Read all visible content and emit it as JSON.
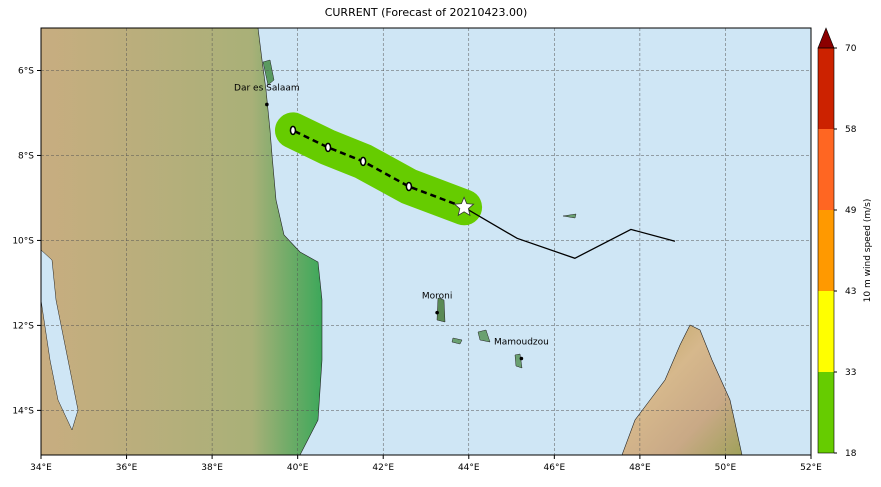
{
  "map": {
    "title": "CURRENT (Forecast of 20210423.00)",
    "xlim": [
      34,
      52
    ],
    "ylim": [
      -15.05,
      -5.0
    ],
    "xticks": [
      {
        "value": 34,
        "label": "34°E"
      },
      {
        "value": 36,
        "label": "36°E"
      },
      {
        "value": 38,
        "label": "38°E"
      },
      {
        "value": 40,
        "label": "40°E"
      },
      {
        "value": 42,
        "label": "42°E"
      },
      {
        "value": 44,
        "label": "44°E"
      },
      {
        "value": 46,
        "label": "46°E"
      },
      {
        "value": 48,
        "label": "48°E"
      },
      {
        "value": 50,
        "label": "50°E"
      },
      {
        "value": 52,
        "label": "52°E"
      }
    ],
    "yticks": [
      {
        "value": -6,
        "label": "6°S"
      },
      {
        "value": -8,
        "label": "8°S"
      },
      {
        "value": -10,
        "label": "10°S"
      },
      {
        "value": -12,
        "label": "12°S"
      },
      {
        "value": -14,
        "label": "14°S"
      }
    ],
    "grid": true,
    "cities": [
      {
        "name": "Dar es Salaam",
        "lon": 39.28,
        "lat": -6.8
      },
      {
        "name": "Moroni",
        "lon": 43.26,
        "lat": -11.7
      },
      {
        "name": "Mamoudzou",
        "lon": 45.23,
        "lat": -12.78
      }
    ],
    "forecast_track": {
      "lon": [
        43.89,
        42.6,
        41.53,
        40.71,
        39.89
      ],
      "lat": [
        -9.22,
        -8.73,
        -8.14,
        -7.81,
        -7.41
      ]
    },
    "past_track": {
      "lon": [
        48.82,
        47.79,
        46.48,
        45.13,
        43.89
      ],
      "lat": [
        -10.02,
        -9.74,
        -10.42,
        -9.95,
        -9.22
      ]
    },
    "colorbar": {
      "label": "10 m wind speed (m/s)",
      "ticks": [
        18,
        33,
        43,
        49,
        58,
        70
      ],
      "colors": [
        "#66cc00",
        "#ffff00",
        "#ff9900",
        "#ff6622",
        "#cc2200"
      ],
      "extend_color": "#8b0000"
    }
  }
}
